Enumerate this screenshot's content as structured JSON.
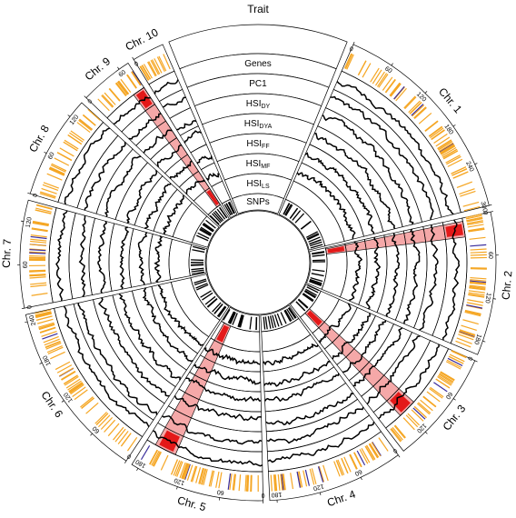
{
  "title": "Trait",
  "tracks": [
    {
      "id": "genes",
      "main": "Genes",
      "sub": ""
    },
    {
      "id": "pc1",
      "main": "PC1",
      "sub": ""
    },
    {
      "id": "hsi-dy",
      "main": "HSI",
      "sub": "DY"
    },
    {
      "id": "hsi-dya",
      "main": "HSI",
      "sub": "DYA"
    },
    {
      "id": "hsi-ff",
      "main": "HSI",
      "sub": "FF"
    },
    {
      "id": "hsi-mf",
      "main": "HSI",
      "sub": "MF"
    },
    {
      "id": "hsi-ls",
      "main": "HSI",
      "sub": "LS"
    },
    {
      "id": "snps",
      "main": "SNPs",
      "sub": ""
    }
  ],
  "chromosomes": [
    {
      "label": "Chr. 1",
      "length": 300,
      "ticks": [
        "0",
        "60",
        "120",
        "180",
        "240",
        "300"
      ]
    },
    {
      "label": "Chr. 2",
      "length": 200,
      "ticks": [
        "0",
        "60",
        "120",
        "180"
      ]
    },
    {
      "label": "Chr. 3",
      "length": 160,
      "ticks": [
        "0",
        "60",
        "120"
      ]
    },
    {
      "label": "Chr. 4",
      "length": 190,
      "ticks": [
        "0",
        "60",
        "120",
        "180"
      ]
    },
    {
      "label": "Chr. 5",
      "length": 190,
      "ticks": [
        "0",
        "60",
        "120",
        "180"
      ]
    },
    {
      "label": "Chr. 6",
      "length": 250,
      "ticks": [
        "0",
        "60",
        "120",
        "180",
        "240"
      ]
    },
    {
      "label": "Chr. 7",
      "length": 150,
      "ticks": [
        "0",
        "60",
        "120"
      ]
    },
    {
      "label": "Chr. 8",
      "length": 145,
      "ticks": [
        "0",
        "60",
        "120"
      ]
    },
    {
      "label": "Chr. 9",
      "length": 75,
      "ticks": [
        "0",
        "60"
      ]
    },
    {
      "label": "Chr. 10",
      "length": 45,
      "ticks": [
        "0"
      ]
    }
  ],
  "highlights": [
    {
      "chr": 2,
      "start": 5,
      "end": 30
    },
    {
      "chr": 3,
      "start": 100,
      "end": 130
    },
    {
      "chr": 5,
      "start": 140,
      "end": 175
    },
    {
      "chr": 9,
      "start": 55,
      "end": 75
    }
  ],
  "colors": {
    "gene": "#f5a623",
    "gene_alt": "#3a2d9c",
    "highlight": "#f28b8b",
    "highlight_strong": "#e00000",
    "line": "#000000"
  }
}
